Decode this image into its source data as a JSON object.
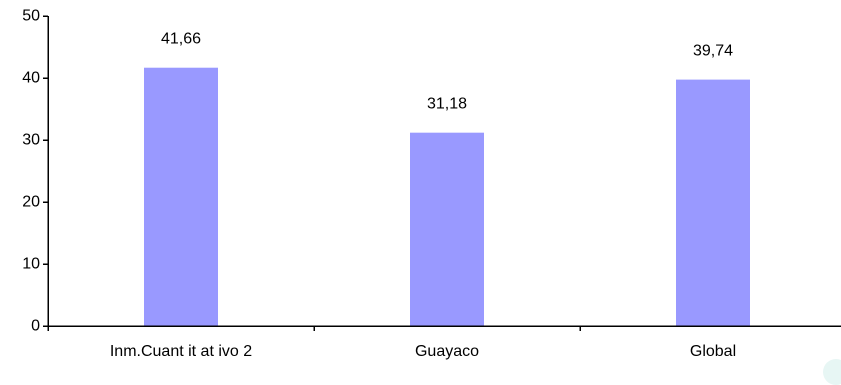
{
  "chart_data": {
    "type": "bar",
    "categories": [
      "Inm.Cuant it at ivo 2",
      "Guayaco",
      "Global"
    ],
    "values": [
      41.66,
      31.18,
      39.74
    ],
    "data_labels": [
      "41,66",
      "31,18",
      "39,74"
    ],
    "title": "",
    "xlabel": "",
    "ylabel": "",
    "ylim": [
      0,
      50
    ],
    "yticks": [
      0,
      10,
      20,
      30,
      40,
      50
    ],
    "ytick_labels": [
      "0",
      "10",
      "20",
      "30",
      "40",
      "50"
    ],
    "grid": false,
    "legend": "none",
    "bar_color": "#9999ff"
  }
}
